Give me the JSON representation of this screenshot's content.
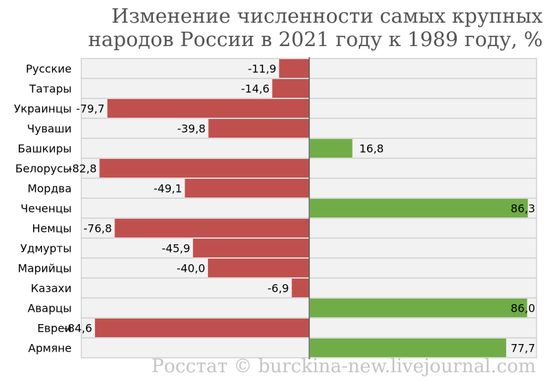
{
  "title": {
    "line1": "Изменение численности самых крупных",
    "line2": "народов России в 2021 году к 1989 году, %"
  },
  "source": "Росстат © burckina-new.livejournal.com",
  "colors": {
    "negative": "#c0504d",
    "positive": "#70ad47",
    "row": "#f2f2f2",
    "rowBorder": "#bfbfbf",
    "axis": "#595959"
  },
  "chart_data": {
    "type": "bar",
    "orientation": "horizontal",
    "title": "Изменение численности самых крупных народов России в 2021 году к 1989 году, %",
    "categories": [
      "Русские",
      "Татары",
      "Украинцы",
      "Чуваши",
      "Башкиры",
      "Белорусы",
      "Мордва",
      "Чеченцы",
      "Немцы",
      "Удмурты",
      "Марийцы",
      "Казахи",
      "Аварцы",
      "Евреи",
      "Армяне"
    ],
    "values": [
      -11.9,
      -14.6,
      -79.7,
      -39.8,
      16.8,
      -82.8,
      -49.1,
      86.3,
      -76.8,
      -45.9,
      -40.0,
      -6.9,
      86.0,
      -84.6,
      77.7
    ],
    "labels": [
      "-11,9",
      "-14,6",
      "-79,7",
      "-39,8",
      "16,8",
      "-82,8",
      "-49,1",
      "86,3",
      "-76,8",
      "-45,9",
      "-40,0",
      "-6,9",
      "86,0",
      "-84,6",
      "77,7"
    ],
    "xlim": [
      -90,
      90
    ],
    "legend": "none",
    "grid": false
  }
}
